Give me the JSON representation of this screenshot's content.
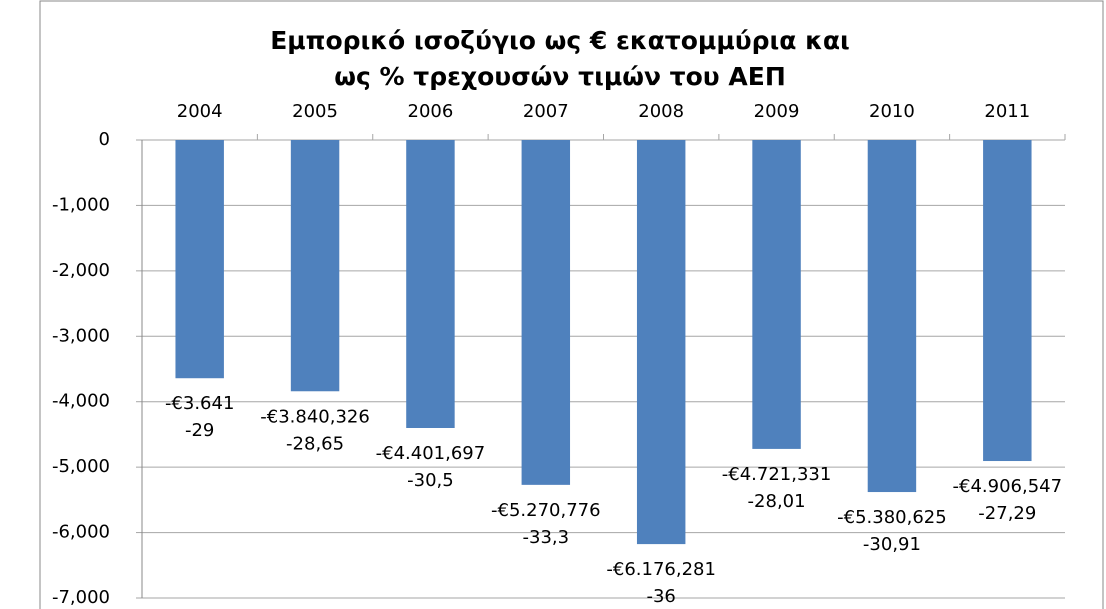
{
  "chart_data": {
    "type": "bar",
    "title": [
      "Εμπορικό ισοζύγιο ως € εκατομμύρια  και",
      "ως % τρεχουσών τιμών του ΑΕΠ"
    ],
    "categories": [
      "2004",
      "2005",
      "2006",
      "2007",
      "2008",
      "2009",
      "2010",
      "2011"
    ],
    "values": [
      -3641,
      -3840.326,
      -4401.697,
      -5270.776,
      -6176.281,
      -4721.331,
      -5380.625,
      -4906.547
    ],
    "value_labels": [
      "-€3.641",
      "-€3.840,326",
      "-€4.401,697",
      "-€5.270,776",
      "-€6.176,281",
      "-€4.721,331",
      "-€5.380,625",
      "-€4.906,547"
    ],
    "gdp_pct": [
      -29,
      -28.65,
      -30.5,
      -33.3,
      -36,
      -28.01,
      -30.91,
      -27.29
    ],
    "gdp_pct_labels": [
      "-29",
      "-28,65",
      "-30,5",
      "-33,3",
      "-36",
      "-28,01",
      "-30,91",
      "-27,29"
    ],
    "color": "#4f81bd",
    "ylim": [
      -7000,
      0
    ],
    "yticks": [
      0,
      {
        "value": -1000,
        "label": "-1,000"
      },
      {
        "value": -2000,
        "label": "-2,000"
      },
      {
        "value": -3000,
        "label": "-3,000"
      },
      {
        "value": -4000,
        "label": "-4,000"
      },
      {
        "value": -5000,
        "label": "-5,000"
      },
      {
        "value": -6000,
        "label": "-6,000"
      },
      {
        "value": -7000,
        "label": "-7,000"
      }
    ],
    "grid": true
  }
}
